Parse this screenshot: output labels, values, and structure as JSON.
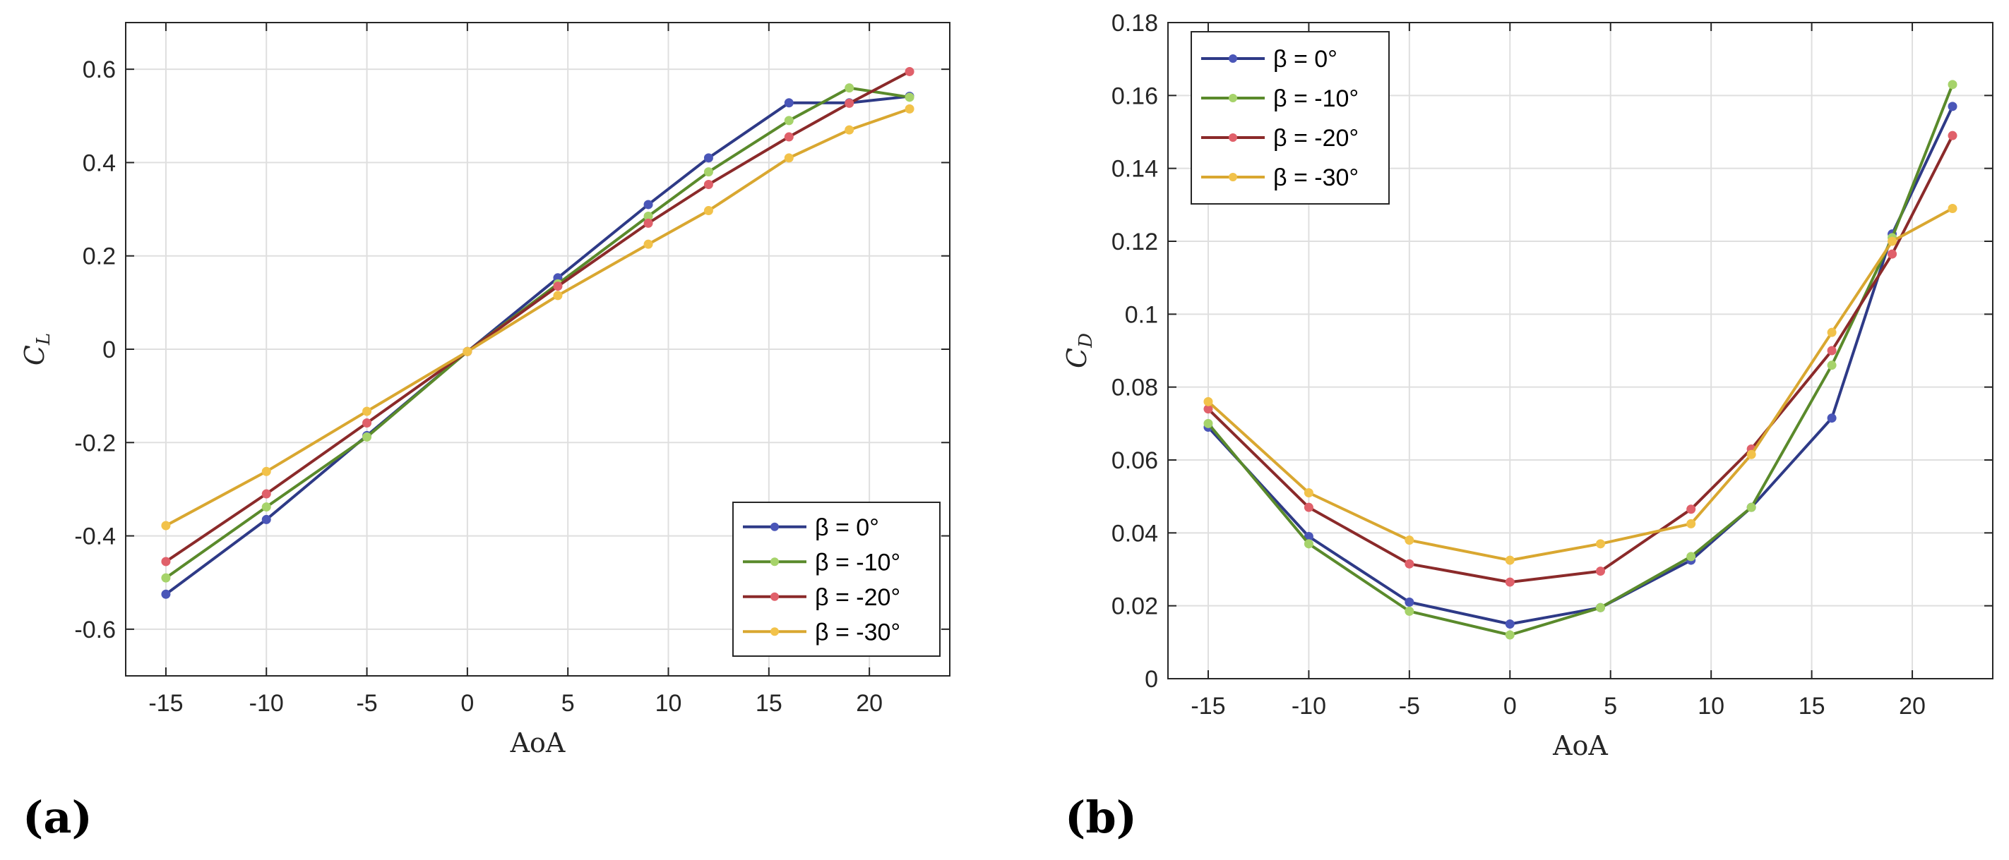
{
  "colors": {
    "beta_0": "#2e3a87",
    "beta_m10": "#5a8a2b",
    "beta_m20": "#8b2a2a",
    "beta_m30": "#d9a730",
    "marker_0": "#4a56b8",
    "marker_m10": "#a6d36a",
    "marker_m20": "#e0606a",
    "marker_m30": "#f2c24a"
  },
  "panel_labels": [
    "(a)",
    "(b)"
  ],
  "chart_data": [
    {
      "type": "line",
      "panel": "(a)",
      "xlabel": "AoA",
      "ylabel_main": "C",
      "ylabel_sub": "L",
      "xlim": [
        -17,
        24
      ],
      "ylim": [
        -0.7,
        0.7
      ],
      "xticks": [
        -15,
        -10,
        -5,
        0,
        5,
        10,
        15,
        20
      ],
      "yticks": [
        -0.6,
        -0.4,
        -0.2,
        0,
        0.2,
        0.4,
        0.6
      ],
      "ytick_labels": [
        "-0.6",
        "-0.4",
        "-0.2",
        "0",
        "0.2",
        "0.4",
        "0.6"
      ],
      "grid": true,
      "legend_position": "bottom-right",
      "series": [
        {
          "name": "β = 0°",
          "color_key": "beta_0",
          "marker_key": "marker_0",
          "x": [
            -15,
            -10,
            -5,
            0,
            4.5,
            9,
            12,
            16,
            19,
            22
          ],
          "y": [
            -0.525,
            -0.365,
            -0.185,
            -0.005,
            0.153,
            0.31,
            0.41,
            0.528,
            0.528,
            0.542
          ]
        },
        {
          "name": "β = -10°",
          "color_key": "beta_m10",
          "marker_key": "marker_m10",
          "x": [
            -15,
            -10,
            -5,
            0,
            4.5,
            9,
            12,
            16,
            19,
            22
          ],
          "y": [
            -0.49,
            -0.338,
            -0.188,
            -0.005,
            0.14,
            0.285,
            0.38,
            0.49,
            0.56,
            0.54
          ]
        },
        {
          "name": "β = -20°",
          "color_key": "beta_m20",
          "marker_key": "marker_m20",
          "x": [
            -15,
            -10,
            -5,
            0,
            4.5,
            9,
            12,
            16,
            19,
            22
          ],
          "y": [
            -0.455,
            -0.31,
            -0.158,
            -0.005,
            0.135,
            0.27,
            0.353,
            0.455,
            0.527,
            0.595
          ]
        },
        {
          "name": "β = -30°",
          "color_key": "beta_m30",
          "marker_key": "marker_m30",
          "x": [
            -15,
            -10,
            -5,
            0,
            4.5,
            9,
            12,
            16,
            19,
            22
          ],
          "y": [
            -0.378,
            -0.262,
            -0.133,
            -0.005,
            0.115,
            0.225,
            0.297,
            0.41,
            0.47,
            0.515
          ]
        }
      ]
    },
    {
      "type": "line",
      "panel": "(b)",
      "xlabel": "AoA",
      "ylabel_main": "C",
      "ylabel_sub": "D",
      "xlim": [
        -17,
        24
      ],
      "ylim": [
        0,
        0.18
      ],
      "xticks": [
        -15,
        -10,
        -5,
        0,
        5,
        10,
        15,
        20
      ],
      "yticks": [
        0,
        0.02,
        0.04,
        0.06,
        0.08,
        0.1,
        0.12,
        0.14,
        0.16,
        0.18
      ],
      "ytick_labels": [
        "0",
        "0.02",
        "0.04",
        "0.06",
        "0.08",
        "0.1",
        "0.12",
        "0.14",
        "0.16",
        "0.18"
      ],
      "grid": true,
      "legend_position": "top-left",
      "series": [
        {
          "name": "β = 0°",
          "color_key": "beta_0",
          "marker_key": "marker_0",
          "x": [
            -15,
            -10,
            -5,
            0,
            4.5,
            9,
            12,
            16,
            19,
            22
          ],
          "y": [
            0.069,
            0.039,
            0.021,
            0.015,
            0.0195,
            0.0325,
            0.047,
            0.0715,
            0.122,
            0.157
          ]
        },
        {
          "name": "β = -10°",
          "color_key": "beta_m10",
          "marker_key": "marker_m10",
          "x": [
            -15,
            -10,
            -5,
            0,
            4.5,
            9,
            12,
            16,
            19,
            22
          ],
          "y": [
            0.07,
            0.037,
            0.0185,
            0.012,
            0.0195,
            0.0335,
            0.047,
            0.086,
            0.121,
            0.163
          ]
        },
        {
          "name": "β = -20°",
          "color_key": "beta_m20",
          "marker_key": "marker_m20",
          "x": [
            -15,
            -10,
            -5,
            0,
            4.5,
            9,
            12,
            16,
            19,
            22
          ],
          "y": [
            0.074,
            0.047,
            0.0315,
            0.0265,
            0.0295,
            0.0465,
            0.063,
            0.09,
            0.1165,
            0.149
          ]
        },
        {
          "name": "β = -30°",
          "color_key": "beta_m30",
          "marker_key": "marker_m30",
          "x": [
            -15,
            -10,
            -5,
            0,
            4.5,
            9,
            12,
            16,
            19,
            22
          ],
          "y": [
            0.076,
            0.051,
            0.038,
            0.0325,
            0.037,
            0.0425,
            0.0615,
            0.095,
            0.12,
            0.129
          ]
        }
      ]
    }
  ]
}
